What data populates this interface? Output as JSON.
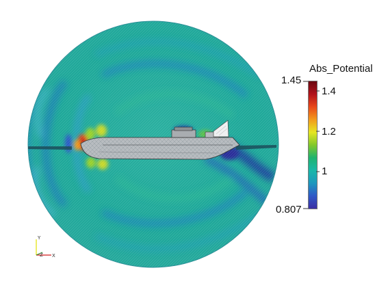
{
  "legend": {
    "title": "Abs_Potential",
    "range_max": "1.45",
    "range_min": "0.807",
    "ticks": [
      "1.4",
      "1.2",
      "1"
    ],
    "colormap": [
      "#3b2fa3",
      "#2f59c7",
      "#1c98bd",
      "#19b7a8",
      "#1fb36f",
      "#82c82a",
      "#e6e622",
      "#f29a1c",
      "#e8481a",
      "#b0121b",
      "#6b0810"
    ]
  },
  "orientation_axes": {
    "x_label": "X",
    "y_label": "Y",
    "z_label": "Z"
  },
  "scene": {
    "background": "#ffffff",
    "field_base_color": "#1fa99a"
  }
}
